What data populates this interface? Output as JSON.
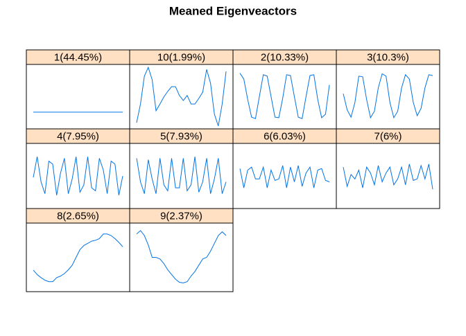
{
  "chart_data": {
    "type": "line",
    "title": "Meaned Eigenveactors",
    "color": "#0073e6",
    "ylim": [
      -1.1,
      1.1
    ],
    "panels": [
      {
        "title": "1(44.45%)",
        "values": [
          -0.53,
          -0.53,
          -0.53,
          -0.53,
          -0.53,
          -0.53,
          -0.53,
          -0.53,
          -0.53,
          -0.53,
          -0.53,
          -0.53,
          -0.53,
          -0.53,
          -0.53,
          -0.53,
          -0.53,
          -0.53,
          -0.53,
          -0.53,
          -0.53,
          -0.53,
          -0.53,
          -0.53
        ]
      },
      {
        "title": "10(1.99%)",
        "values": [
          -0.89,
          -0.25,
          0.7,
          1.0,
          0.58,
          -0.48,
          -0.25,
          -0.01,
          0.18,
          0.34,
          0.34,
          0.04,
          -0.13,
          0.04,
          -0.25,
          -0.25,
          -0.06,
          0.15,
          0.93,
          0.46,
          -0.6,
          -1.0,
          -0.25,
          0.86
        ]
      },
      {
        "title": "2(10.33%)",
        "values": [
          0.8,
          0.6,
          -0.1,
          -0.7,
          -0.75,
          0.0,
          0.75,
          0.7,
          0.0,
          -0.7,
          -0.72,
          -0.05,
          0.75,
          0.72,
          0.0,
          -0.7,
          -0.75,
          0.0,
          0.72,
          0.75,
          -0.1,
          -0.72,
          -0.6,
          0.4
        ]
      },
      {
        "title": "3(10.3%)",
        "values": [
          0.1,
          -0.45,
          -0.7,
          -0.2,
          0.7,
          0.68,
          -0.1,
          -0.72,
          -0.5,
          0.3,
          0.78,
          0.7,
          -0.2,
          -0.72,
          -0.5,
          0.3,
          0.75,
          0.6,
          -0.2,
          -0.65,
          -0.4,
          0.3,
          0.75,
          0.72
        ]
      },
      {
        "title": "4(7.95%)",
        "values": [
          -0.05,
          0.65,
          -0.2,
          -0.6,
          0.5,
          0.4,
          -0.65,
          0.1,
          0.6,
          -0.6,
          -0.1,
          0.65,
          -0.55,
          -0.3,
          0.65,
          -0.4,
          -0.5,
          0.6,
          0.2,
          -0.6,
          0.5,
          0.4,
          -0.65,
          0
        ]
      },
      {
        "title": "5(7.93%)",
        "values": [
          0.6,
          -0.2,
          -0.6,
          0.55,
          -0.1,
          -0.6,
          0.6,
          -0.3,
          -0.5,
          0.6,
          -0.4,
          -0.4,
          0.6,
          -0.5,
          -0.3,
          0.65,
          -0.55,
          -0.2,
          0.6,
          -0.6,
          -0.1,
          0.6,
          -0.6,
          -0.2
        ]
      },
      {
        "title": "6(6.03%)",
        "values": [
          0.25,
          -0.4,
          0.2,
          0.3,
          -0.1,
          -0.1,
          0.3,
          -0.4,
          0.2,
          -0.15,
          -0.1,
          0.35,
          -0.4,
          0.3,
          -0.2,
          0.35,
          -0.35,
          0.1,
          0.3,
          -0.4,
          0.2,
          0.25,
          -0.15,
          -0.2
        ]
      },
      {
        "title": "7(6%)",
        "values": [
          0.3,
          -0.35,
          0.05,
          -0.1,
          0.2,
          -0.4,
          0.3,
          0.1,
          -0.3,
          0.35,
          -0.2,
          0.1,
          0.3,
          -0.3,
          -0.1,
          0.3,
          -0.3,
          0.4,
          -0.15,
          -0.1,
          0.35,
          -0.1,
          0.4,
          -0.45
        ]
      },
      {
        "title": "8(2.65%)",
        "values": [
          -0.41,
          -0.55,
          -0.65,
          -0.73,
          -0.78,
          -0.78,
          -0.65,
          -0.6,
          -0.52,
          -0.4,
          -0.25,
          0.0,
          0.25,
          0.38,
          0.45,
          0.52,
          0.55,
          0.6,
          0.75,
          0.75,
          0.7,
          0.6,
          0.48,
          0.34
        ]
      },
      {
        "title": "9(2.37%)",
        "values": [
          0.75,
          0.86,
          0.7,
          0.4,
          0.0,
          0.0,
          -0.05,
          -0.2,
          -0.4,
          -0.55,
          -0.7,
          -0.8,
          -0.82,
          -0.78,
          -0.6,
          -0.45,
          -0.25,
          -0.05,
          0.0,
          0.2,
          0.45,
          0.7,
          0.82,
          0.7
        ]
      }
    ]
  }
}
